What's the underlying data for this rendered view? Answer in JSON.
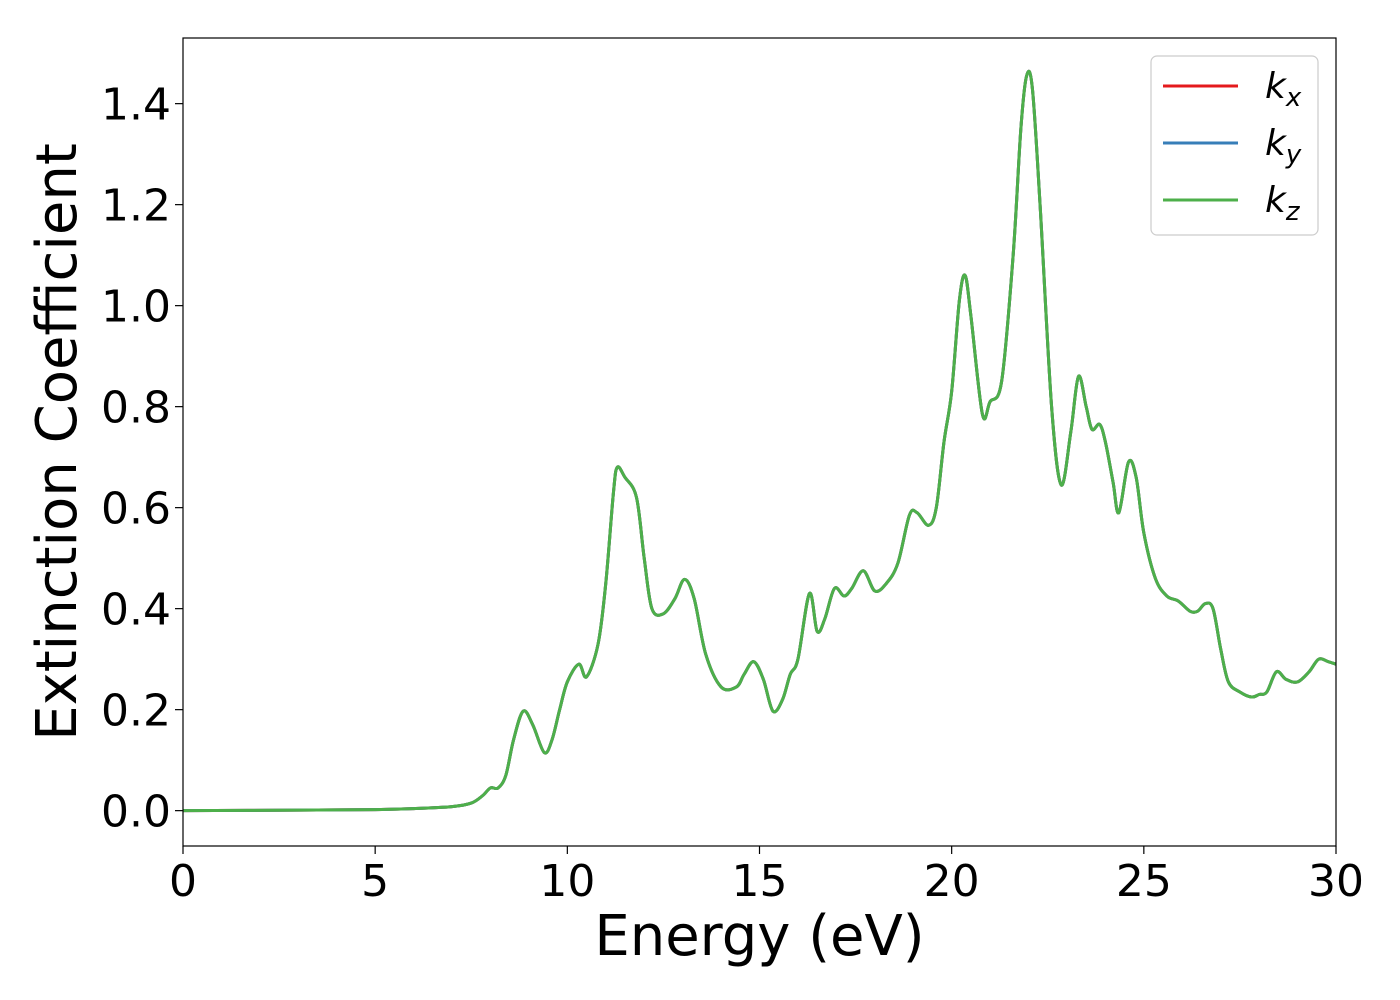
{
  "chart_data": {
    "type": "line",
    "title": "",
    "xlabel": "Energy (eV)",
    "ylabel": "Extinction Coefficient",
    "xlim": [
      0,
      30
    ],
    "ylim": [
      -0.07,
      1.53
    ],
    "xticks": [
      0,
      5,
      10,
      15,
      20,
      25,
      30
    ],
    "xtick_labels": [
      "0",
      "5",
      "10",
      "15",
      "20",
      "25",
      "30"
    ],
    "yticks": [
      0.0,
      0.2,
      0.4,
      0.6,
      0.8,
      1.0,
      1.2,
      1.4
    ],
    "ytick_labels": [
      "0.0",
      "0.2",
      "0.4",
      "0.6",
      "0.8",
      "1.0",
      "1.2",
      "1.4"
    ],
    "grid": false,
    "legend_position": "top-right",
    "x": [
      0,
      3,
      5,
      6,
      7,
      7.5,
      7.8,
      8.0,
      8.2,
      8.4,
      8.6,
      8.85,
      9.1,
      9.4,
      9.6,
      9.8,
      10.0,
      10.3,
      10.5,
      10.8,
      11.0,
      11.2,
      11.3,
      11.5,
      11.8,
      12.0,
      12.2,
      12.5,
      12.8,
      13.05,
      13.3,
      13.6,
      14.0,
      14.4,
      14.6,
      14.85,
      15.1,
      15.35,
      15.6,
      15.8,
      16.0,
      16.3,
      16.5,
      16.7,
      16.95,
      17.2,
      17.4,
      17.7,
      18.0,
      18.3,
      18.6,
      18.9,
      19.1,
      19.4,
      19.6,
      19.8,
      20.0,
      20.2,
      20.35,
      20.5,
      20.8,
      21.0,
      21.3,
      21.6,
      21.8,
      21.95,
      22.1,
      22.3,
      22.6,
      22.85,
      23.1,
      23.3,
      23.5,
      23.65,
      23.85,
      24.0,
      24.2,
      24.35,
      24.6,
      24.8,
      25.0,
      25.3,
      25.6,
      25.9,
      26.2,
      26.4,
      26.6,
      26.8,
      27.0,
      27.2,
      27.5,
      27.8,
      28.0,
      28.2,
      28.45,
      28.7,
      29.0,
      29.3,
      29.55,
      29.8,
      30.0
    ],
    "series": [
      {
        "name": "k_x",
        "color": "#e41a1c",
        "values": [
          0.0,
          0.001,
          0.002,
          0.004,
          0.008,
          0.015,
          0.03,
          0.045,
          0.045,
          0.07,
          0.14,
          0.197,
          0.17,
          0.115,
          0.14,
          0.2,
          0.255,
          0.29,
          0.265,
          0.33,
          0.45,
          0.63,
          0.68,
          0.66,
          0.62,
          0.5,
          0.4,
          0.39,
          0.42,
          0.458,
          0.42,
          0.31,
          0.245,
          0.245,
          0.27,
          0.295,
          0.26,
          0.197,
          0.22,
          0.27,
          0.3,
          0.43,
          0.355,
          0.38,
          0.44,
          0.425,
          0.44,
          0.475,
          0.435,
          0.45,
          0.49,
          0.585,
          0.59,
          0.565,
          0.6,
          0.73,
          0.83,
          1.01,
          1.06,
          0.98,
          0.785,
          0.81,
          0.85,
          1.1,
          1.35,
          1.455,
          1.43,
          1.2,
          0.8,
          0.645,
          0.75,
          0.86,
          0.8,
          0.755,
          0.765,
          0.73,
          0.65,
          0.59,
          0.69,
          0.66,
          0.55,
          0.46,
          0.425,
          0.415,
          0.395,
          0.395,
          0.41,
          0.4,
          0.32,
          0.255,
          0.235,
          0.225,
          0.23,
          0.235,
          0.275,
          0.26,
          0.255,
          0.275,
          0.3,
          0.295,
          0.29
        ]
      },
      {
        "name": "k_y",
        "color": "#377eb8",
        "values": [
          0.0,
          0.001,
          0.002,
          0.004,
          0.008,
          0.015,
          0.03,
          0.045,
          0.045,
          0.07,
          0.14,
          0.197,
          0.17,
          0.115,
          0.14,
          0.2,
          0.255,
          0.29,
          0.265,
          0.33,
          0.45,
          0.63,
          0.68,
          0.66,
          0.62,
          0.5,
          0.4,
          0.39,
          0.42,
          0.458,
          0.42,
          0.31,
          0.245,
          0.245,
          0.27,
          0.295,
          0.26,
          0.197,
          0.22,
          0.27,
          0.3,
          0.43,
          0.355,
          0.38,
          0.44,
          0.425,
          0.44,
          0.475,
          0.435,
          0.45,
          0.49,
          0.585,
          0.59,
          0.565,
          0.6,
          0.73,
          0.83,
          1.01,
          1.06,
          0.98,
          0.785,
          0.81,
          0.85,
          1.1,
          1.35,
          1.455,
          1.43,
          1.2,
          0.8,
          0.645,
          0.75,
          0.86,
          0.8,
          0.755,
          0.765,
          0.73,
          0.65,
          0.59,
          0.69,
          0.66,
          0.55,
          0.46,
          0.425,
          0.415,
          0.395,
          0.395,
          0.41,
          0.4,
          0.32,
          0.255,
          0.235,
          0.225,
          0.23,
          0.235,
          0.275,
          0.26,
          0.255,
          0.275,
          0.3,
          0.295,
          0.29
        ]
      },
      {
        "name": "k_z",
        "color": "#4daf4a",
        "values": [
          0.0,
          0.001,
          0.002,
          0.004,
          0.008,
          0.015,
          0.03,
          0.045,
          0.045,
          0.07,
          0.14,
          0.197,
          0.17,
          0.115,
          0.14,
          0.2,
          0.255,
          0.29,
          0.265,
          0.33,
          0.45,
          0.63,
          0.68,
          0.66,
          0.62,
          0.5,
          0.4,
          0.39,
          0.42,
          0.458,
          0.42,
          0.31,
          0.245,
          0.245,
          0.27,
          0.295,
          0.26,
          0.197,
          0.22,
          0.27,
          0.3,
          0.43,
          0.355,
          0.38,
          0.44,
          0.425,
          0.44,
          0.475,
          0.435,
          0.45,
          0.49,
          0.585,
          0.59,
          0.565,
          0.6,
          0.73,
          0.83,
          1.01,
          1.06,
          0.98,
          0.785,
          0.81,
          0.85,
          1.1,
          1.35,
          1.455,
          1.43,
          1.2,
          0.8,
          0.645,
          0.75,
          0.86,
          0.8,
          0.755,
          0.765,
          0.73,
          0.65,
          0.59,
          0.69,
          0.66,
          0.55,
          0.46,
          0.425,
          0.415,
          0.395,
          0.395,
          0.41,
          0.4,
          0.32,
          0.255,
          0.235,
          0.225,
          0.23,
          0.235,
          0.275,
          0.26,
          0.255,
          0.275,
          0.3,
          0.295,
          0.29
        ]
      }
    ],
    "legend": [
      {
        "base": "k",
        "sub": "x",
        "color": "#e41a1c"
      },
      {
        "base": "k",
        "sub": "y",
        "color": "#377eb8"
      },
      {
        "base": "k",
        "sub": "z",
        "color": "#4daf4a"
      }
    ]
  }
}
